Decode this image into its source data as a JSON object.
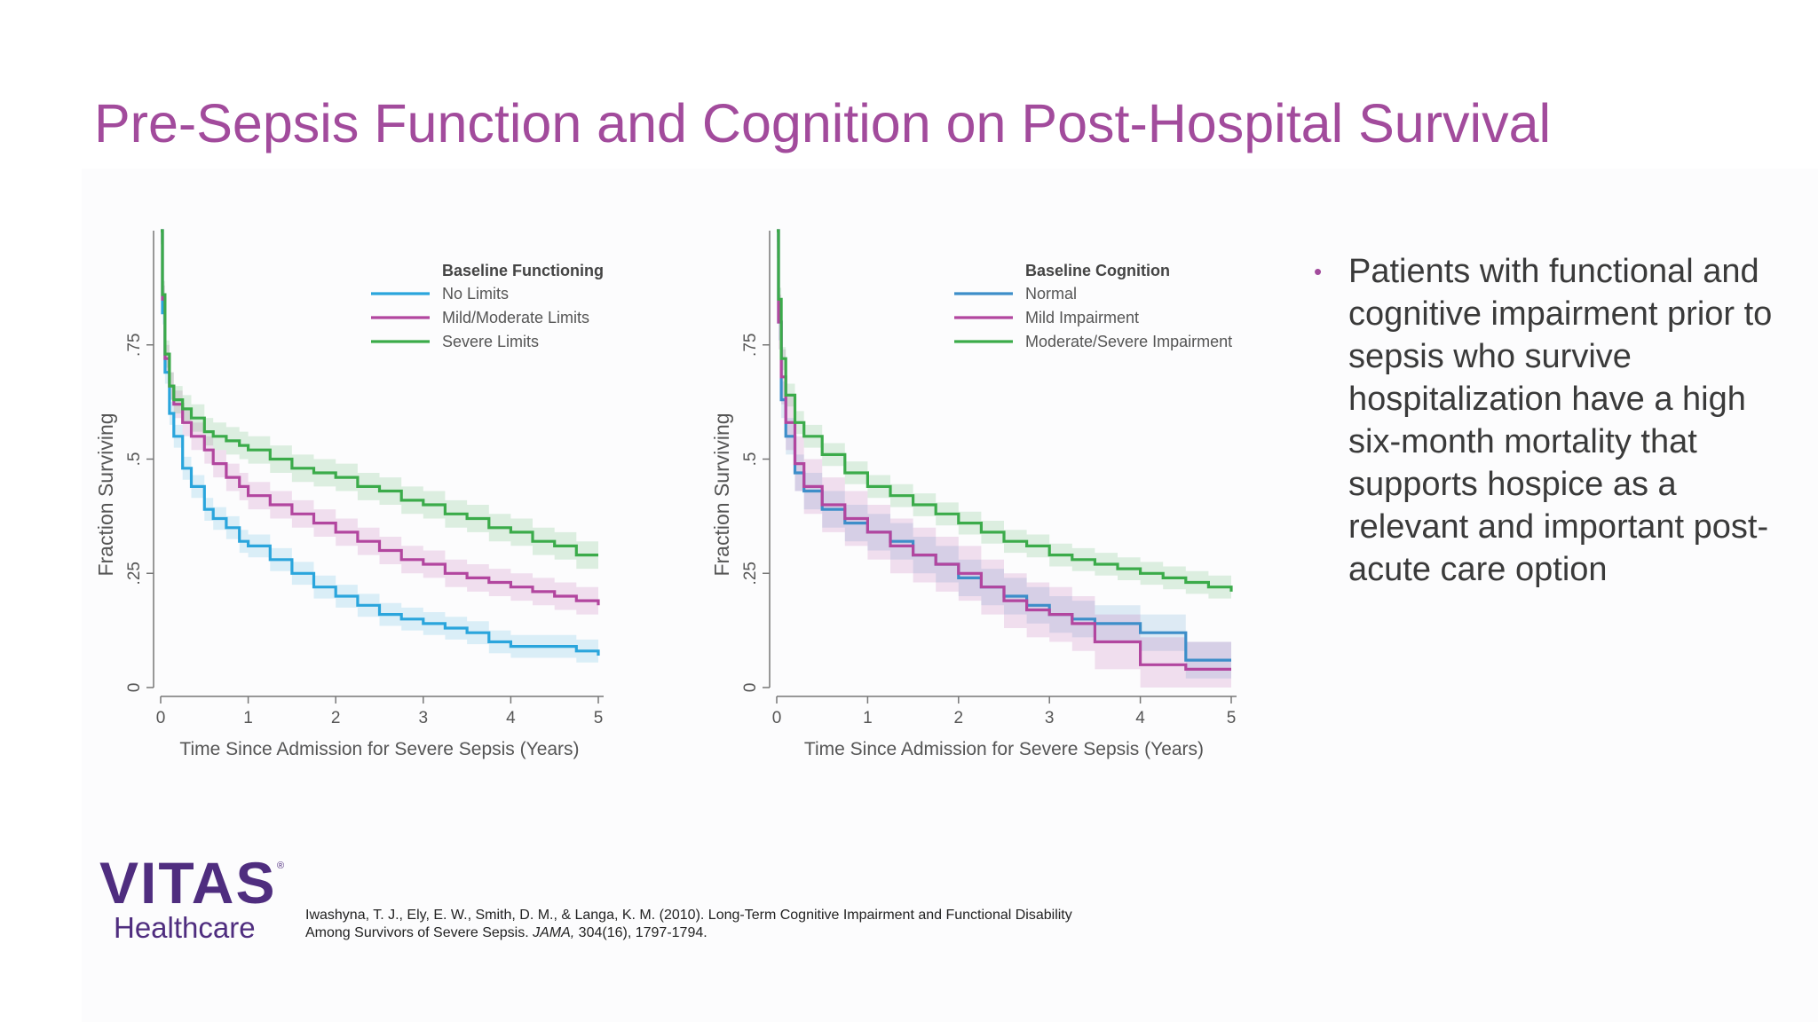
{
  "title": "Pre-Sepsis Function and Cognition on Post-Hospital Survival",
  "colors": {
    "title": "#a24b9c",
    "series_blue": "#2aa5dc",
    "series_magenta": "#b2469f",
    "series_green": "#3bab4a",
    "logo": "#4f2d7f"
  },
  "chart_data": [
    {
      "type": "line",
      "title": "",
      "xlabel": "Time Since Admission for Severe Sepsis (Years)",
      "ylabel": "Fraction Surviving",
      "xlim": [
        0,
        5
      ],
      "ylim": [
        0,
        1
      ],
      "xticks": [
        0,
        1,
        2,
        3,
        4,
        5
      ],
      "yticks": [
        0,
        0.25,
        0.5,
        0.75
      ],
      "ytick_labels": [
        "0",
        ".25",
        ".5",
        ".75"
      ],
      "grid": false,
      "legend_title": "Baseline Functioning",
      "legend_position": "top-right",
      "series": [
        {
          "name": "No Limits",
          "color": "#2aa5dc",
          "x": [
            0,
            0.02,
            0.05,
            0.1,
            0.15,
            0.25,
            0.35,
            0.5,
            0.6,
            0.75,
            0.9,
            1,
            1.25,
            1.5,
            1.75,
            2,
            2.25,
            2.5,
            2.75,
            3,
            3.25,
            3.5,
            3.75,
            4,
            4.25,
            4.5,
            4.75,
            5
          ],
          "y": [
            1,
            0.82,
            0.69,
            0.6,
            0.55,
            0.48,
            0.44,
            0.39,
            0.37,
            0.35,
            0.32,
            0.31,
            0.28,
            0.25,
            0.22,
            0.2,
            0.18,
            0.16,
            0.15,
            0.14,
            0.13,
            0.12,
            0.1,
            0.09,
            0.09,
            0.09,
            0.08,
            0.07
          ],
          "band_width": 0.025
        },
        {
          "name": "Mild/Moderate Limits",
          "color": "#b2469f",
          "x": [
            0,
            0.02,
            0.05,
            0.1,
            0.15,
            0.25,
            0.35,
            0.5,
            0.6,
            0.75,
            0.9,
            1,
            1.25,
            1.5,
            1.75,
            2,
            2.25,
            2.5,
            2.75,
            3,
            3.25,
            3.5,
            3.75,
            4,
            4.25,
            4.5,
            4.75,
            5
          ],
          "y": [
            1,
            0.85,
            0.72,
            0.66,
            0.62,
            0.58,
            0.55,
            0.52,
            0.49,
            0.46,
            0.44,
            0.42,
            0.4,
            0.38,
            0.36,
            0.34,
            0.32,
            0.3,
            0.28,
            0.27,
            0.25,
            0.24,
            0.23,
            0.22,
            0.21,
            0.2,
            0.19,
            0.18
          ],
          "band_width": 0.03
        },
        {
          "name": "Severe Limits",
          "color": "#3bab4a",
          "x": [
            0,
            0.02,
            0.05,
            0.1,
            0.15,
            0.25,
            0.35,
            0.5,
            0.6,
            0.75,
            0.9,
            1,
            1.25,
            1.5,
            1.75,
            2,
            2.25,
            2.5,
            2.75,
            3,
            3.25,
            3.5,
            3.75,
            4,
            4.25,
            4.5,
            4.75,
            5
          ],
          "y": [
            1,
            0.86,
            0.73,
            0.66,
            0.63,
            0.61,
            0.59,
            0.56,
            0.55,
            0.54,
            0.53,
            0.52,
            0.5,
            0.48,
            0.47,
            0.46,
            0.44,
            0.43,
            0.41,
            0.4,
            0.38,
            0.37,
            0.35,
            0.34,
            0.32,
            0.31,
            0.29,
            0.29
          ],
          "band_width": 0.03
        }
      ],
      "axis_style": "stata"
    },
    {
      "type": "line",
      "title": "",
      "xlabel": "Time Since Admission for Severe Sepsis (Years)",
      "ylabel": "Fraction Surviving",
      "xlim": [
        0,
        5
      ],
      "ylim": [
        0,
        1
      ],
      "xticks": [
        0,
        1,
        2,
        3,
        4,
        5
      ],
      "yticks": [
        0,
        0.25,
        0.5,
        0.75
      ],
      "ytick_labels": [
        "0",
        ".25",
        ".5",
        ".75"
      ],
      "grid": false,
      "legend_title": "Baseline Cognition",
      "legend_position": "top-right",
      "series": [
        {
          "name": "Normal",
          "color": "#3d8ec9",
          "x": [
            0,
            0.02,
            0.05,
            0.1,
            0.2,
            0.3,
            0.5,
            0.75,
            1,
            1.25,
            1.5,
            1.75,
            2,
            2.25,
            2.5,
            2.75,
            3,
            3.25,
            3.5,
            3.75,
            4,
            4.25,
            4.5,
            4.75,
            5
          ],
          "y": [
            1,
            0.8,
            0.63,
            0.55,
            0.47,
            0.43,
            0.39,
            0.36,
            0.34,
            0.32,
            0.29,
            0.27,
            0.24,
            0.22,
            0.2,
            0.18,
            0.16,
            0.15,
            0.14,
            0.14,
            0.12,
            0.12,
            0.06,
            0.06,
            0.06
          ],
          "band_width": 0.04
        },
        {
          "name": "Mild Impairment",
          "color": "#b2469f",
          "x": [
            0,
            0.02,
            0.05,
            0.1,
            0.2,
            0.3,
            0.5,
            0.75,
            1,
            1.25,
            1.5,
            1.75,
            2,
            2.25,
            2.5,
            2.75,
            3,
            3.25,
            3.5,
            3.75,
            4,
            4.25,
            4.5,
            4.75,
            5
          ],
          "y": [
            1,
            0.8,
            0.68,
            0.58,
            0.49,
            0.44,
            0.4,
            0.37,
            0.34,
            0.31,
            0.29,
            0.27,
            0.25,
            0.22,
            0.19,
            0.17,
            0.16,
            0.14,
            0.1,
            0.1,
            0.05,
            0.05,
            0.04,
            0.04,
            0.04
          ],
          "band_width": 0.06
        },
        {
          "name": "Moderate/Severe Impairment",
          "color": "#3bab4a",
          "x": [
            0,
            0.02,
            0.05,
            0.1,
            0.2,
            0.3,
            0.5,
            0.75,
            1,
            1.25,
            1.5,
            1.75,
            2,
            2.25,
            2.5,
            2.75,
            3,
            3.25,
            3.5,
            3.75,
            4,
            4.25,
            4.5,
            4.75,
            5
          ],
          "y": [
            1,
            0.85,
            0.72,
            0.64,
            0.58,
            0.55,
            0.51,
            0.47,
            0.44,
            0.42,
            0.4,
            0.38,
            0.36,
            0.34,
            0.32,
            0.31,
            0.29,
            0.28,
            0.27,
            0.26,
            0.25,
            0.24,
            0.23,
            0.22,
            0.21
          ],
          "band_width": 0.025
        }
      ],
      "axis_style": "stata"
    }
  ],
  "bullets": [
    "Patients with functional and cognitive impairment prior to sepsis who survive hospitalization have a high six-month mortality that supports hospice as a relevant and important post-acute care option"
  ],
  "logo": {
    "brand": "VITAS",
    "registered_mark": "®",
    "tagline": "Healthcare"
  },
  "citation": {
    "line1": "Iwashyna, T. J., Ely, E. W., Smith, D. M., & Langa, K. M. (2010). Long-Term Cognitive Impairment and Functional Disability",
    "line2_pre": "Among Survivors of Severe Sepsis. ",
    "line2_journal": "JAMA,",
    "line2_post": " 304(16), 1797-1794."
  }
}
